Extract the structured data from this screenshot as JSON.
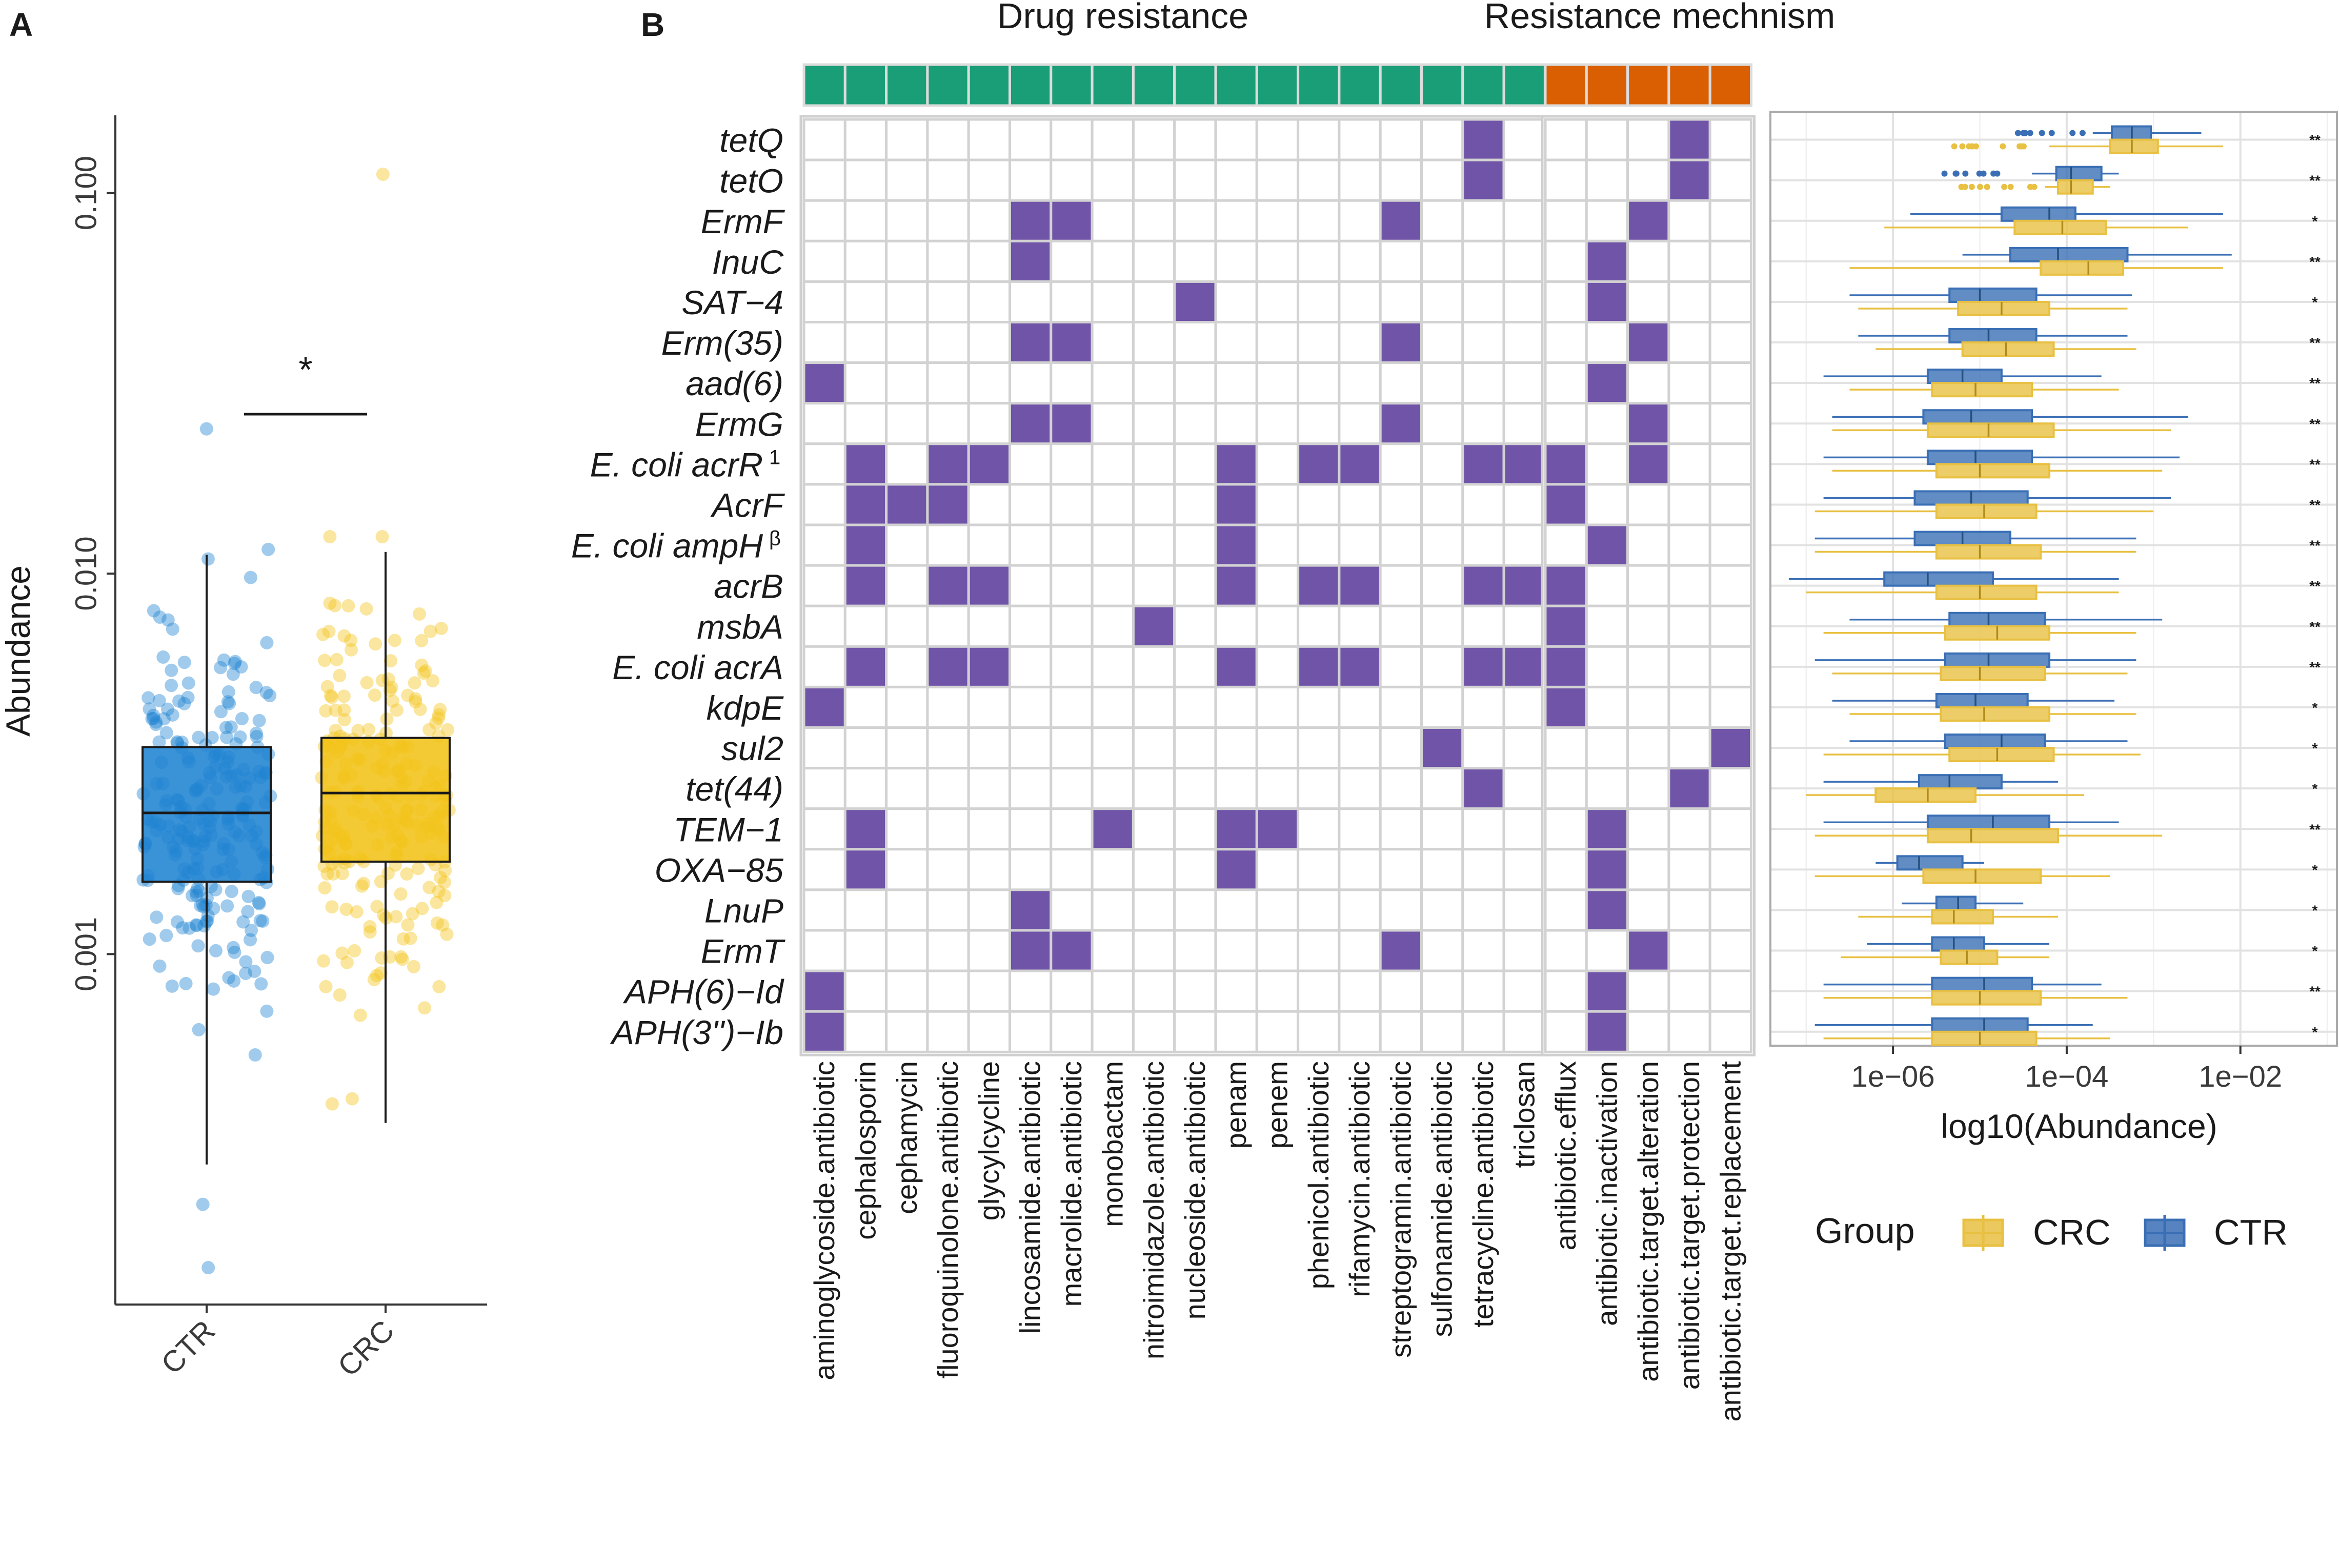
{
  "panels": {
    "a": "A",
    "b": "B"
  },
  "chart_data": [
    {
      "type": "box",
      "name": "panel-a",
      "ylabel": "Abundance",
      "yscale": "log10",
      "ylim": [
        0.00012,
        0.16
      ],
      "yticks": [
        0.001,
        0.01,
        0.1
      ],
      "ytick_labels": [
        "0.001",
        "0.010",
        "0.100"
      ],
      "categories": [
        "CTR",
        "CRC"
      ],
      "colors": [
        "#1f83d1",
        "#f2c318"
      ],
      "boxes": [
        {
          "group": "CTR",
          "q1": 0.00155,
          "median": 0.00235,
          "q3": 0.0035,
          "whisker_low": 0.00028,
          "whisker_high": 0.0112
        },
        {
          "group": "CRC",
          "q1": 0.00175,
          "median": 0.00265,
          "q3": 0.0037,
          "whisker_low": 0.00036,
          "whisker_high": 0.0114
        }
      ],
      "outliers": [
        {
          "group": "CTR",
          "value": 0.024
        },
        {
          "group": "CTR",
          "value": 0.00015
        },
        {
          "group": "CTR",
          "value": 0.00022
        },
        {
          "group": "CRC",
          "value": 0.112
        }
      ],
      "significance": "*"
    },
    {
      "type": "heatmap",
      "name": "panel-b-heatmap",
      "strip_titles": [
        "Drug resistance",
        "Resistance mechnism"
      ],
      "strip_colors": [
        "#1a9e77",
        "#d95f02"
      ],
      "cell_color": "#7054a8",
      "genes": [
        "tetQ",
        "tetO",
        "ErmF",
        "InuC",
        "SAT−4",
        "Erm(35)",
        "aad(6)",
        "ErmG",
        "E. coli acrR",
        "AcrF",
        "E. coli ampH",
        "acrB",
        "msbA",
        "E. coli acrA",
        "kdpE",
        "sul2",
        "tet(44)",
        "TEM−1",
        "OXA−85",
        "LnuP",
        "ErmT",
        "APH(6)−Id",
        "APH(3'')−Ib"
      ],
      "gene_superscripts": [
        "",
        "",
        "",
        "",
        "",
        "",
        "",
        "",
        "1",
        "",
        "β",
        "",
        "",
        "",
        "",
        "",
        "",
        "",
        "",
        "",
        "",
        "",
        ""
      ],
      "drug_classes": [
        "aminoglycoside.antibiotic",
        "cephalosporin",
        "cephamycin",
        "fluoroquinolone.antibiotic",
        "glycylcycline",
        "lincosamide.antibiotic",
        "macrolide.antibiotic",
        "monobactam",
        "nitroimidazole.antibiotic",
        "nucleoside.antibiotic",
        "penam",
        "penem",
        "phenicol.antibiotic",
        "rifamycin.antibiotic",
        "streptogramin.antibiotic",
        "sulfonamide.antibiotic",
        "tetracycline.antibiotic",
        "triclosan"
      ],
      "mechanisms": [
        "antibiotic.efflux",
        "antibiotic.inactivation",
        "antibiotic.target.alteration",
        "antibiotic.target.protection",
        "antibiotic.target.replacement"
      ],
      "drug_matrix": [
        [
          16
        ],
        [
          16
        ],
        [
          5,
          6,
          14
        ],
        [
          5
        ],
        [
          9
        ],
        [
          5,
          6,
          14
        ],
        [
          0
        ],
        [
          5,
          6,
          14
        ],
        [
          1,
          3,
          4,
          10,
          12,
          13,
          16,
          17
        ],
        [
          1,
          2,
          3,
          10
        ],
        [
          1,
          10
        ],
        [
          1,
          3,
          4,
          10,
          12,
          13,
          16,
          17
        ],
        [
          8
        ],
        [
          1,
          3,
          4,
          10,
          12,
          13,
          16,
          17
        ],
        [
          0
        ],
        [
          15
        ],
        [
          16
        ],
        [
          1,
          7,
          10,
          11
        ],
        [
          1,
          10
        ],
        [
          5
        ],
        [
          5,
          6,
          14
        ],
        [
          0
        ],
        [
          0
        ]
      ],
      "mechanism_matrix": [
        [
          3
        ],
        [
          3
        ],
        [
          2
        ],
        [
          1
        ],
        [
          1
        ],
        [
          2
        ],
        [
          1
        ],
        [
          2
        ],
        [
          0,
          2
        ],
        [
          0
        ],
        [
          1
        ],
        [
          0
        ],
        [
          0
        ],
        [
          0
        ],
        [
          0
        ],
        [
          4
        ],
        [
          3
        ],
        [
          1
        ],
        [
          1
        ],
        [
          1
        ],
        [
          2
        ],
        [
          1
        ],
        [
          1
        ]
      ]
    },
    {
      "type": "box",
      "name": "panel-b-boxplot",
      "orientation": "horizontal",
      "xlabel": "log10(Abundance)",
      "xscale": "log10",
      "xlim": [
        -7.4,
        -0.9
      ],
      "xticks": [
        -6,
        -4,
        -2
      ],
      "xtick_labels": [
        "1e−06",
        "1e−04",
        "1e−02"
      ],
      "legend_title": "Group",
      "legend": [
        {
          "label": "CRC",
          "color": "#e8c042"
        },
        {
          "label": "CTR",
          "color": "#3a6fb5"
        }
      ],
      "series": [
        {
          "name": "CTR",
          "color": "#3a6fb5",
          "boxes": [
            [
              -3.7,
              -3.48,
              -3.25,
              -3.03,
              -2.45
            ],
            [
              -4.4,
              -4.12,
              -3.95,
              -3.6,
              -3.4
            ],
            [
              -5.8,
              -4.75,
              -4.2,
              -3.9,
              -2.2
            ],
            [
              -5.2,
              -4.65,
              -4.1,
              -3.3,
              -2.1
            ],
            [
              -6.5,
              -5.35,
              -5.0,
              -4.35,
              -3.25
            ],
            [
              -6.4,
              -5.35,
              -4.9,
              -4.35,
              -3.3
            ],
            [
              -6.8,
              -5.6,
              -5.2,
              -4.75,
              -3.6
            ],
            [
              -6.7,
              -5.65,
              -5.1,
              -4.4,
              -2.6
            ],
            [
              -6.8,
              -5.6,
              -5.05,
              -4.4,
              -2.7
            ],
            [
              -6.8,
              -5.75,
              -5.1,
              -4.45,
              -2.8
            ],
            [
              -6.9,
              -5.75,
              -5.2,
              -4.65,
              -3.2
            ],
            [
              -7.2,
              -6.1,
              -5.6,
              -4.85,
              -3.4
            ],
            [
              -6.5,
              -5.35,
              -4.9,
              -4.25,
              -2.9
            ],
            [
              -6.9,
              -5.4,
              -4.9,
              -4.2,
              -3.2
            ],
            [
              -6.7,
              -5.5,
              -5.05,
              -4.45,
              -3.45
            ],
            [
              -6.5,
              -5.4,
              -4.75,
              -4.25,
              -3.3
            ],
            [
              -6.8,
              -5.7,
              -5.35,
              -4.75,
              -4.1
            ],
            [
              -6.8,
              -5.6,
              -4.85,
              -4.2,
              -3.4
            ],
            [
              -6.2,
              -5.95,
              -5.7,
              -5.2,
              -4.95
            ],
            [
              -5.9,
              -5.5,
              -5.25,
              -5.05,
              -4.5
            ],
            [
              -6.3,
              -5.55,
              -5.3,
              -4.95,
              -4.2
            ],
            [
              -6.8,
              -5.55,
              -4.95,
              -4.4,
              -3.6
            ],
            [
              -6.9,
              -5.55,
              -4.95,
              -4.45,
              -3.7
            ]
          ]
        },
        {
          "name": "CRC",
          "color": "#e8c042",
          "boxes": [
            [
              -4.2,
              -3.5,
              -3.25,
              -2.95,
              -2.2
            ],
            [
              -4.25,
              -4.1,
              -3.95,
              -3.7,
              -3.5
            ],
            [
              -6.1,
              -4.6,
              -4.05,
              -3.55,
              -2.6
            ],
            [
              -6.5,
              -4.3,
              -3.75,
              -3.35,
              -2.2
            ],
            [
              -6.4,
              -5.25,
              -4.75,
              -4.2,
              -3.3
            ],
            [
              -6.2,
              -5.2,
              -4.7,
              -4.15,
              -3.2
            ],
            [
              -6.5,
              -5.55,
              -5.05,
              -4.4,
              -3.4
            ],
            [
              -6.7,
              -5.6,
              -4.9,
              -4.15,
              -2.8
            ],
            [
              -6.7,
              -5.5,
              -5.0,
              -4.2,
              -2.9
            ],
            [
              -6.9,
              -5.5,
              -4.95,
              -4.35,
              -3.0
            ],
            [
              -6.9,
              -5.5,
              -5.0,
              -4.3,
              -3.2
            ],
            [
              -7.0,
              -5.5,
              -5.0,
              -4.35,
              -3.4
            ],
            [
              -6.8,
              -5.4,
              -4.8,
              -4.2,
              -3.2
            ],
            [
              -6.7,
              -5.45,
              -5.0,
              -4.25,
              -3.3
            ],
            [
              -6.5,
              -5.45,
              -4.95,
              -4.2,
              -3.2
            ],
            [
              -6.8,
              -5.35,
              -4.8,
              -4.15,
              -3.15
            ],
            [
              -7.0,
              -6.2,
              -5.6,
              -5.05,
              -3.8
            ],
            [
              -6.9,
              -5.6,
              -5.1,
              -4.1,
              -2.9
            ],
            [
              -6.9,
              -5.65,
              -5.05,
              -4.3,
              -3.5
            ],
            [
              -6.4,
              -5.55,
              -5.3,
              -4.85,
              -4.1
            ],
            [
              -6.6,
              -5.45,
              -5.15,
              -4.8,
              -4.2
            ],
            [
              -6.8,
              -5.55,
              -5.0,
              -4.3,
              -3.3
            ],
            [
              -6.8,
              -5.55,
              -5.0,
              -4.35,
              -3.5
            ]
          ]
        }
      ],
      "significance": [
        "**",
        "**",
        "*",
        "**",
        "*",
        "**",
        "**",
        "**",
        "**",
        "**",
        "**",
        "**",
        "**",
        "**",
        "*",
        "*",
        "*",
        "**",
        "*",
        "*",
        "*",
        "**",
        "*"
      ]
    }
  ]
}
